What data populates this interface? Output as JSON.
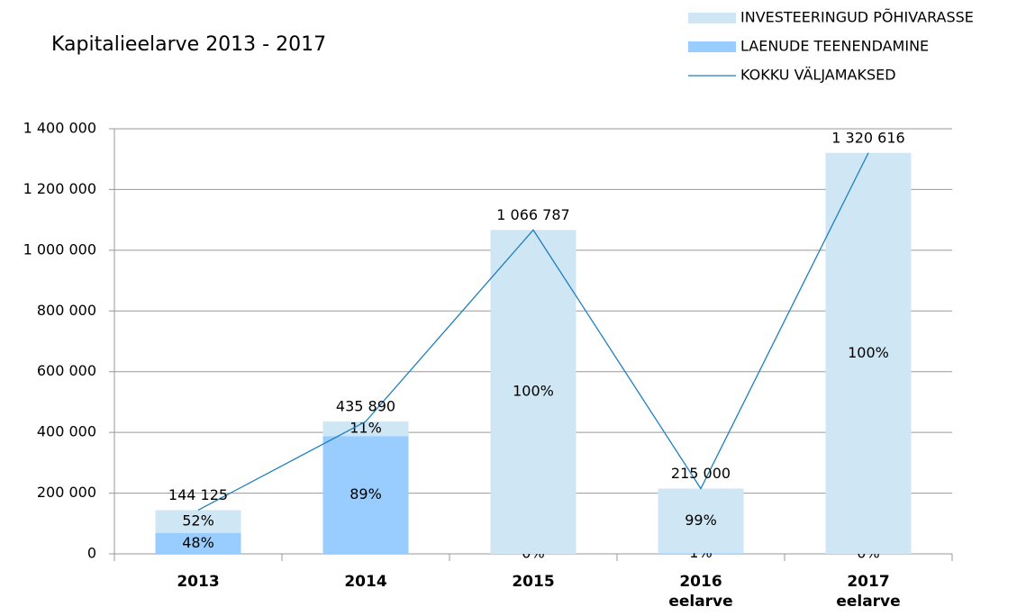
{
  "chart_data": {
    "type": "bar",
    "title": "Kapitalieelarve  2013 - 2017",
    "categories": [
      "2013",
      "2014",
      "2015",
      "2016 eelarve",
      "2017 eelarve"
    ],
    "stacked": true,
    "legend": "top-right",
    "grid": true,
    "ylim": [
      0,
      1400000
    ],
    "yticks": [
      0,
      {
        "value": 200000,
        "label": "200 000"
      },
      {
        "value": 400000,
        "label": "400 000"
      },
      {
        "value": 600000,
        "label": "600 000"
      },
      {
        "value": 800000,
        "label": "800 000"
      },
      {
        "value": 1000000,
        "label": "1 000 000"
      },
      {
        "value": 1200000,
        "label": "1 200 000"
      },
      {
        "value": 1400000,
        "label": "1 400 000"
      }
    ],
    "series": [
      {
        "name": "INVESTEERINGUD PÕHIVARASSE",
        "type": "bar",
        "color": "#cfe6f4",
        "values": [
          74945,
          47948,
          1066787,
          212850,
          1320616
        ],
        "share_labels": [
          "52%",
          "11%",
          "100%",
          "99%",
          "100%"
        ]
      },
      {
        "name": "LAENUDE TEENENDAMINE",
        "type": "bar",
        "color": "#99ccff",
        "values": [
          69180,
          387942,
          0,
          2150,
          0
        ],
        "share_labels": [
          "48%",
          "89%",
          "0%",
          "1%",
          "0%"
        ]
      },
      {
        "name": "KOKKU VÄLJAMAKSED",
        "type": "line",
        "color": "#1f7fbf",
        "values": [
          144125,
          435890,
          1066787,
          215000,
          1320616
        ],
        "value_labels": [
          "144 125",
          "435 890",
          "1 066 787",
          "215 000",
          "1 320 616"
        ]
      }
    ]
  }
}
